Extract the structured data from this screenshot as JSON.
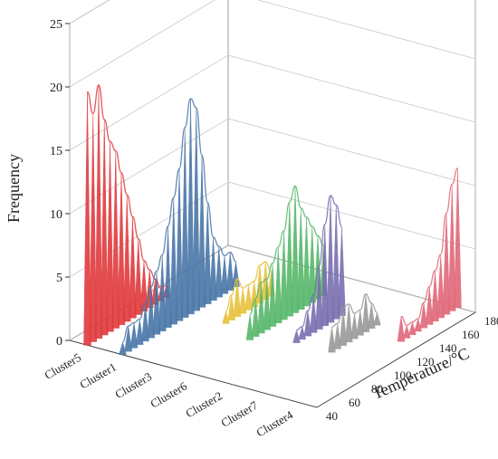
{
  "chart_data": {
    "type": "bar",
    "subtype": "3d-waterfall-histogram",
    "title": "",
    "zlabel": "Frequency",
    "ylabel": "Temperature/°C",
    "xlabel": "",
    "zlim": [
      0,
      25
    ],
    "z_ticks": [
      "0",
      "5",
      "10",
      "15",
      "20",
      "25"
    ],
    "ylim": [
      40,
      180
    ],
    "y_ticks": [
      "40",
      "60",
      "80",
      "100",
      "120",
      "140",
      "160",
      "180"
    ],
    "categories": [
      "Cluster5",
      "Cluster1",
      "Cluster3",
      "Cluster6",
      "Cluster2",
      "Cluster7",
      "Cluster4"
    ],
    "grid": true,
    "series": [
      {
        "name": "Cluster5",
        "color": "#e03a3e",
        "x": [
          40,
          45,
          50,
          55,
          60,
          65,
          70,
          75,
          80,
          85,
          90,
          95,
          100,
          105,
          110
        ],
        "values": [
          20,
          18,
          20,
          17,
          15,
          14,
          12,
          10,
          8,
          6,
          4,
          3,
          2,
          1,
          1
        ]
      },
      {
        "name": "Cluster1",
        "color": "#4a76a8",
        "x": [
          40,
          45,
          50,
          55,
          60,
          65,
          70,
          75,
          80,
          85,
          90,
          95,
          100,
          105,
          110,
          115,
          120,
          125,
          130,
          135,
          140
        ],
        "values": [
          1,
          2,
          2,
          2,
          3,
          4,
          5,
          6,
          8,
          10,
          12,
          15,
          17,
          16,
          12,
          8,
          5,
          4,
          3,
          3,
          2
        ]
      },
      {
        "name": "Cluster3",
        "color": "#e8c23a",
        "x": [
          100,
          105,
          110,
          115,
          120,
          125,
          130,
          135,
          140
        ],
        "values": [
          1,
          2,
          3,
          2,
          2,
          2,
          3,
          3,
          2
        ]
      },
      {
        "name": "Cluster6",
        "color": "#57b86a",
        "x": [
          90,
          95,
          100,
          105,
          110,
          115,
          120,
          125,
          130,
          135,
          140,
          145,
          150,
          155
        ],
        "values": [
          2,
          3,
          4,
          4,
          5,
          6,
          7,
          9,
          10,
          8,
          7,
          6,
          5,
          4
        ]
      },
      {
        "name": "Cluster2",
        "color": "#7a6eb0",
        "x": [
          100,
          105,
          110,
          115,
          120,
          125,
          130,
          135,
          140
        ],
        "values": [
          1,
          1,
          2,
          3,
          5,
          8,
          10,
          9,
          7
        ]
      },
      {
        "name": "Cluster7",
        "color": "#9a9a9a",
        "x": [
          100,
          105,
          110,
          115,
          120,
          125,
          130,
          135,
          140
        ],
        "values": [
          2,
          2,
          3,
          3,
          2,
          2,
          3,
          2,
          1
        ]
      },
      {
        "name": "Cluster4",
        "color": "#e06878",
        "x": [
          130,
          135,
          140,
          145,
          150,
          155,
          160,
          165,
          170,
          175,
          180
        ],
        "values": [
          2,
          1,
          1,
          1,
          2,
          3,
          4,
          5,
          8,
          10,
          11
        ]
      }
    ]
  }
}
